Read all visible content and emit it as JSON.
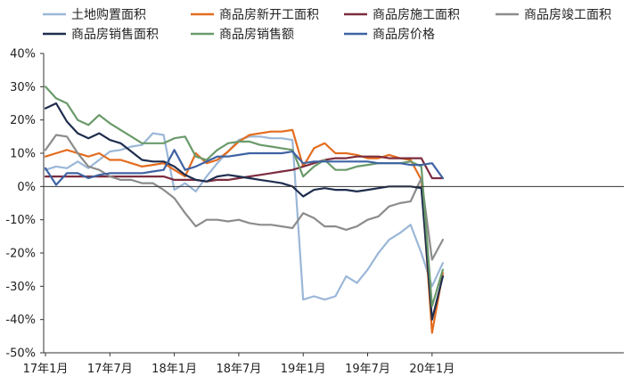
{
  "chart_data": {
    "type": "line",
    "title": "",
    "xlabel": "",
    "ylabel": "",
    "ylim": [
      -50,
      40
    ],
    "y_unit": "%",
    "y_ticks": [
      "40%",
      "30%",
      "20%",
      "10%",
      "0%",
      "-10%",
      "-20%",
      "-30%",
      "-40%",
      "-50%"
    ],
    "x_tick_labels": [
      "17年1月",
      "17年7月",
      "18年1月",
      "18年7月",
      "19年1月",
      "19年7月",
      "20年1月"
    ],
    "x_tick_month_index": [
      0,
      6,
      12,
      18,
      24,
      30,
      36
    ],
    "x_start": "2017-01",
    "x_end": "2020-04",
    "grid": false,
    "legend_position": "top",
    "series": [
      {
        "name": "土地购置面积",
        "color": "#9bb7d8",
        "values": [
          5,
          6,
          5.5,
          7.5,
          5.5,
          8,
          10.5,
          11,
          12,
          12.5,
          16,
          15.5,
          -1,
          1,
          -1.5,
          3,
          7,
          10.5,
          14,
          15,
          15,
          14.5,
          14.5,
          14,
          -34,
          -33,
          -34,
          -33,
          -27,
          -29,
          -25,
          -20,
          -16,
          -14,
          -11.5,
          -20,
          -30,
          -23
        ]
      },
      {
        "name": "商品房新开工面积",
        "color": "#e36c1f",
        "values": [
          9,
          10,
          11,
          10,
          9,
          10,
          8,
          8,
          7,
          6,
          6.5,
          7,
          5,
          3,
          10,
          7,
          8,
          10.5,
          13.5,
          15.5,
          16,
          16.5,
          16.5,
          17,
          6,
          11.5,
          13,
          10,
          10,
          9.5,
          8.5,
          8.5,
          9.5,
          8.5,
          8,
          2,
          -44,
          -26
        ]
      },
      {
        "name": "商品房施工面积",
        "color": "#7b2c3e",
        "values": [
          3,
          3,
          3,
          3,
          3,
          3,
          3,
          3,
          3,
          3,
          3,
          3,
          2,
          2,
          2,
          1.5,
          2,
          2,
          2.5,
          3,
          3.5,
          4,
          4.5,
          5,
          6,
          7,
          8,
          8.5,
          8.5,
          9,
          9,
          9,
          8.5,
          8.5,
          8.5,
          8.5,
          2.5,
          2.5
        ]
      },
      {
        "name": "商品房竣工面积",
        "color": "#8c8c8c",
        "values": [
          11,
          15.5,
          15,
          10,
          6,
          5,
          3,
          2,
          2,
          1,
          1,
          -1,
          -3.5,
          -8,
          -12,
          -10,
          -10,
          -10.5,
          -10,
          -11,
          -11.5,
          -11.5,
          -12,
          -12.5,
          -8,
          -9.5,
          -12,
          -12,
          -13,
          -12,
          -10,
          -9,
          -6,
          -5,
          -4.5,
          2.5,
          -22,
          -16
        ]
      },
      {
        "name": "商品房销售面积",
        "color": "#1f2d4e",
        "values": [
          23.5,
          25,
          19.5,
          16,
          14.5,
          16,
          14,
          13,
          10.5,
          8,
          7.5,
          7.5,
          6,
          3.5,
          2,
          1.5,
          3,
          3.5,
          3,
          2.5,
          2,
          1.5,
          1,
          0,
          -3,
          -1,
          -0.5,
          -1,
          -1,
          -1.5,
          -1,
          -0.5,
          0,
          0,
          0,
          -0.5,
          -40,
          -27
        ]
      },
      {
        "name": "商品房销售额",
        "color": "#6a9a6a",
        "values": [
          30,
          26.5,
          25,
          20,
          18.5,
          21.5,
          19,
          17,
          15,
          13,
          13,
          13,
          14.5,
          15,
          9,
          8,
          11,
          13,
          13.5,
          13.5,
          12.5,
          12,
          11.5,
          11,
          3,
          6,
          8,
          5,
          5,
          6,
          6.5,
          7,
          7,
          7,
          7.5,
          6,
          -36,
          -25
        ]
      },
      {
        "name": "商品房价格",
        "color": "#3f63a3",
        "values": [
          5.5,
          0.5,
          4,
          4,
          2.5,
          3.5,
          4,
          4,
          4,
          4,
          4.5,
          5,
          11,
          5,
          6,
          7.5,
          9,
          9,
          9.5,
          10,
          10,
          10,
          10,
          10.5,
          7,
          7.5,
          7.5,
          7.5,
          7.5,
          7.5,
          7.5,
          7,
          7,
          7,
          6.5,
          6.5,
          7,
          2.5
        ]
      }
    ]
  }
}
